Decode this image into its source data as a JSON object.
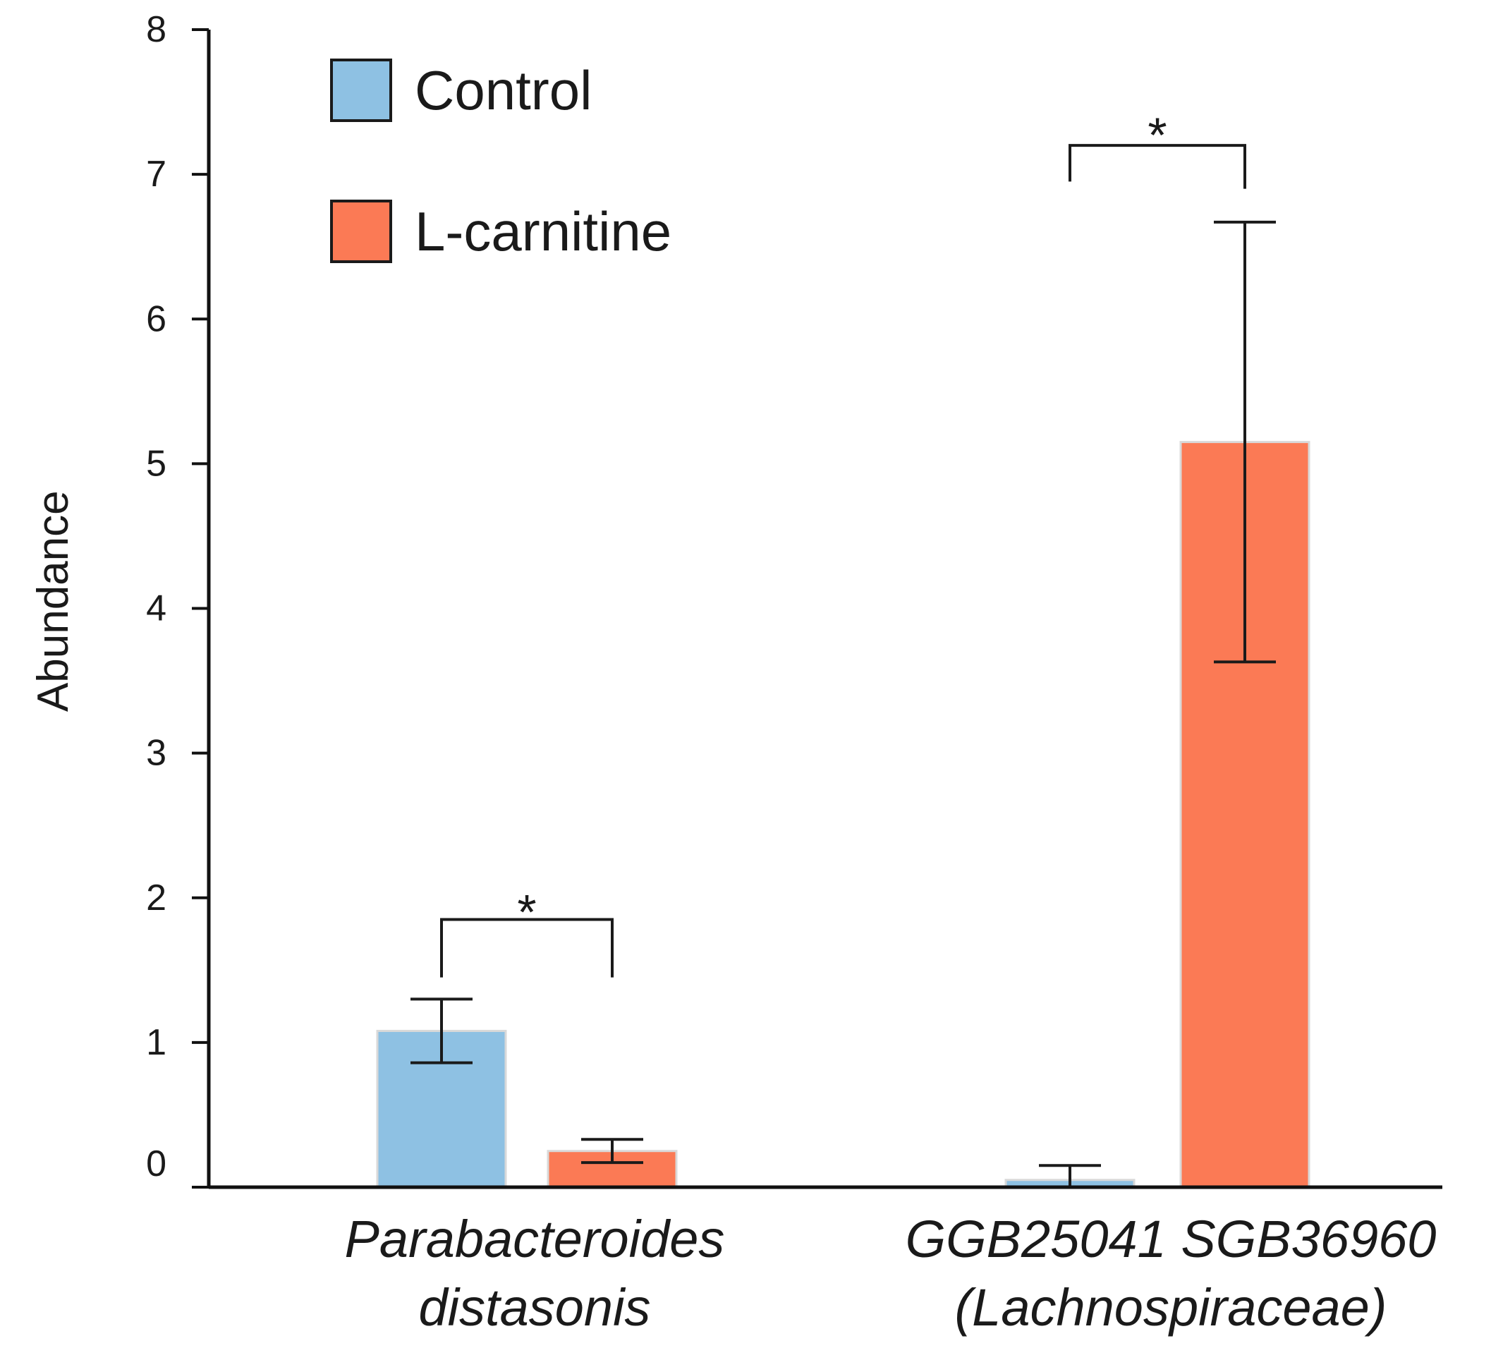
{
  "chart_data": {
    "type": "bar",
    "title": "",
    "xlabel": "",
    "ylabel": "Abundance",
    "ylim": [
      0,
      8
    ],
    "yticks": [
      0,
      1,
      2,
      3,
      4,
      5,
      6,
      7,
      8
    ],
    "grid": false,
    "legend_position": "top-left",
    "categories": [
      [
        "Parabacteroides",
        "distasonis"
      ],
      [
        "GGB25041 SGB36960",
        "(Lachnospiraceae)"
      ]
    ],
    "series": [
      {
        "name": "Control",
        "color": "#8ec1e3",
        "values": [
          1.08,
          0.05
        ],
        "error": [
          0.22,
          0.1
        ]
      },
      {
        "name": "L-carnitine",
        "color": "#fb7a55",
        "values": [
          0.25,
          5.15
        ],
        "error": [
          0.08,
          1.52
        ]
      }
    ],
    "annotations": [
      {
        "category_index": 0,
        "text": "*"
      },
      {
        "category_index": 1,
        "text": "*"
      }
    ]
  }
}
